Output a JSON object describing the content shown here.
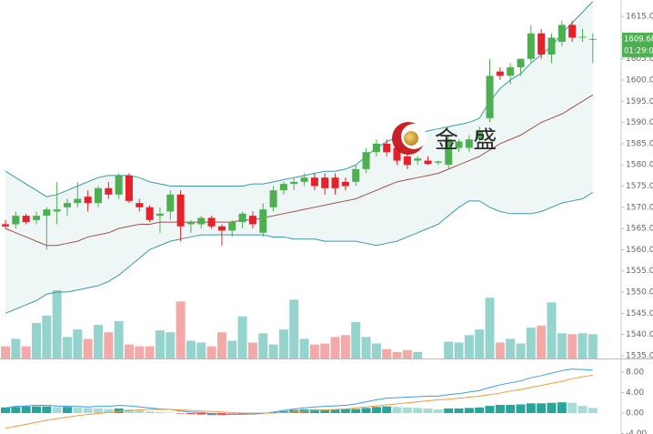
{
  "chart_data": [
    {
      "type": "candlestick",
      "ylim": [
        1534.35,
        1618.87
      ],
      "yticks": [
        {
          "value": 1535,
          "label": "1535.00"
        },
        {
          "value": 1540,
          "label": "1540.00"
        },
        {
          "value": 1545,
          "label": "1545.00"
        },
        {
          "value": 1550,
          "label": "1550.00"
        },
        {
          "value": 1555,
          "label": "1555.00"
        },
        {
          "value": 1560,
          "label": "1560.00"
        },
        {
          "value": 1565,
          "label": "1565.00"
        },
        {
          "value": 1570,
          "label": "1570.00"
        },
        {
          "value": 1575,
          "label": "1575.00"
        },
        {
          "value": 1580,
          "label": "1580.00"
        },
        {
          "value": 1585,
          "label": "1585.00"
        },
        {
          "value": 1590,
          "label": "1590.00"
        },
        {
          "value": 1595,
          "label": "1595.00"
        },
        {
          "value": 1600,
          "label": "1600.00"
        },
        {
          "value": 1605,
          "label": "1605.00"
        },
        {
          "value": 1610,
          "label": "1610.00"
        },
        {
          "value": 1615,
          "label": "1615.00"
        }
      ],
      "open": [
        1566,
        1566,
        1568,
        1567,
        1568,
        1569,
        1570,
        1571,
        1572.5,
        1571,
        1574.5,
        1573,
        1577.5,
        1571,
        1570,
        1568,
        1569,
        1573,
        1566,
        1566,
        1567.5,
        1565.5,
        1564.5,
        1566.5,
        1568,
        1564,
        1570,
        1574,
        1575.5,
        1576,
        1577,
        1577,
        1577,
        1576,
        1576,
        1579,
        1583,
        1585,
        1584,
        1582,
        1581,
        1581,
        1580.5,
        1580,
        1584,
        1584,
        1586,
        1591,
        1602,
        1601,
        1603,
        1605,
        1611,
        1606,
        1609,
        1613,
        1610,
        1609.5
      ],
      "high": [
        1567,
        1569,
        1568.5,
        1569,
        1570,
        1576,
        1572,
        1576,
        1574,
        1575,
        1576,
        1578,
        1578,
        1572,
        1570.5,
        1570,
        1574,
        1574,
        1567,
        1568,
        1568,
        1566,
        1567,
        1569,
        1569,
        1571,
        1575,
        1576,
        1577,
        1578,
        1578,
        1578,
        1578,
        1577,
        1580,
        1584,
        1586,
        1586,
        1585,
        1583,
        1582,
        1582,
        1581,
        1587,
        1586,
        1587,
        1589,
        1605,
        1603,
        1604,
        1605,
        1613,
        1612,
        1611,
        1614,
        1614,
        1612,
        1611
      ],
      "low": [
        1565,
        1565,
        1566,
        1566,
        1560,
        1566,
        1568,
        1570,
        1569,
        1570,
        1572,
        1572,
        1571,
        1569,
        1566.5,
        1564,
        1567,
        1562,
        1564,
        1565,
        1565,
        1561,
        1563,
        1565,
        1565,
        1563,
        1569,
        1573,
        1574,
        1575,
        1574,
        1573,
        1573,
        1574,
        1575,
        1578,
        1582,
        1582,
        1580,
        1579,
        1580,
        1580,
        1580,
        1579,
        1583,
        1583,
        1585,
        1590,
        1600,
        1599,
        1601,
        1604,
        1605,
        1604,
        1608,
        1609,
        1609,
        1604
      ],
      "close": [
        1565.5,
        1568,
        1566.5,
        1568,
        1569.5,
        1569.5,
        1571,
        1572,
        1571,
        1574.5,
        1573,
        1577.5,
        1571.5,
        1570,
        1567,
        1568.5,
        1573,
        1565.5,
        1566.5,
        1567.5,
        1565.5,
        1564.5,
        1566.5,
        1568.5,
        1566,
        1569.5,
        1574,
        1575.5,
        1576,
        1577,
        1575,
        1574.5,
        1574.5,
        1575,
        1579,
        1583,
        1585,
        1583,
        1581,
        1580,
        1581.5,
        1580.2,
        1580.8,
        1586,
        1585.5,
        1586,
        1588,
        1601,
        1601,
        1603,
        1605,
        1611,
        1606,
        1610,
        1613,
        1610,
        1610.2,
        1609.68
      ],
      "up_color": "#4caf50",
      "down_color": "#e8202a",
      "upper": [
        1578.5,
        1577,
        1575.5,
        1574,
        1572.5,
        1573,
        1574,
        1575,
        1576,
        1577,
        1577.5,
        1577.5,
        1577.5,
        1577,
        1576,
        1575.5,
        1575,
        1575,
        1575,
        1575,
        1575,
        1575,
        1575,
        1575,
        1575.5,
        1575.5,
        1576,
        1576.5,
        1577,
        1577.5,
        1578,
        1578.5,
        1578.5,
        1579,
        1580,
        1582,
        1584,
        1585.5,
        1586.5,
        1587,
        1587.5,
        1588,
        1588.5,
        1589,
        1589.5,
        1590,
        1591,
        1595,
        1598,
        1600,
        1601.5,
        1604,
        1606,
        1608,
        1611,
        1613.5,
        1616,
        1618.5
      ],
      "middle": [
        1565,
        1564,
        1563,
        1562,
        1561,
        1561,
        1561.5,
        1562,
        1563,
        1563.5,
        1564,
        1565,
        1565.5,
        1566,
        1566,
        1566.5,
        1566.5,
        1566.5,
        1566.5,
        1566.5,
        1566.5,
        1566.5,
        1566.5,
        1567,
        1567,
        1567.5,
        1568,
        1568.5,
        1569,
        1569.5,
        1570,
        1570.5,
        1571,
        1571.5,
        1572,
        1573,
        1574,
        1575,
        1576,
        1576.5,
        1577,
        1577.5,
        1578,
        1579,
        1580,
        1581,
        1582,
        1583.5,
        1585,
        1586,
        1587,
        1588.5,
        1590,
        1591,
        1592,
        1593.5,
        1595,
        1596.5
      ],
      "lower": [
        1545,
        1546,
        1547,
        1548,
        1549.5,
        1550,
        1550,
        1550.5,
        1551,
        1551.5,
        1552.5,
        1554,
        1556,
        1558,
        1560,
        1561,
        1562,
        1562.5,
        1563,
        1563.5,
        1563.5,
        1563.5,
        1563.5,
        1563.5,
        1563.5,
        1563.5,
        1563,
        1563,
        1562.5,
        1562.5,
        1562.5,
        1562,
        1562,
        1562,
        1562,
        1561.5,
        1561,
        1561.5,
        1562,
        1563,
        1564,
        1565,
        1566,
        1568,
        1570,
        1571.5,
        1571.5,
        1570,
        1569,
        1568.5,
        1568.5,
        1568.5,
        1569,
        1570,
        1571,
        1571.5,
        1572,
        1573.5
      ],
      "band_color": "#3a9aa8",
      "middle_color": "#a0524a",
      "band_fill": "#eef6f6",
      "volume": [
        13,
        21,
        13,
        38,
        46,
        73,
        23,
        31,
        21,
        36,
        28,
        40,
        15,
        13,
        13,
        30,
        28,
        61,
        19,
        17,
        13,
        28,
        19,
        45,
        17,
        27,
        15,
        31,
        63,
        21,
        15,
        16,
        23,
        25,
        39,
        23,
        16,
        10,
        7,
        9,
        7,
        null,
        null,
        18,
        17,
        25,
        31,
        65,
        17,
        21,
        16,
        33,
        35,
        60,
        27,
        26,
        27,
        26
      ],
      "volume_up_color": "#95d3cd",
      "volume_down_color": "#f4a9a9",
      "time_tag": "01:29:00",
      "watermark": "金 盛"
    },
    {
      "type": "macd",
      "ylim": [
        -4.09,
        10.31
      ],
      "yticks": [
        {
          "value": -4,
          "label": "-4.00"
        },
        {
          "value": 0,
          "label": "0.00"
        },
        {
          "value": 4,
          "label": "4.00"
        },
        {
          "value": 8,
          "label": "8.00"
        }
      ],
      "dif": [
        1.0,
        1.3,
        1.4,
        1.5,
        1.5,
        1.4,
        1.3,
        1.3,
        1.2,
        1.3,
        1.3,
        1.5,
        1.4,
        1.2,
        1.0,
        0.8,
        0.7,
        0.4,
        0.2,
        0.1,
        -0.1,
        -0.3,
        -0.3,
        -0.2,
        -0.2,
        -0.1,
        0.2,
        0.5,
        0.8,
        1.0,
        1.2,
        1.3,
        1.4,
        1.5,
        1.8,
        2.2,
        2.6,
        2.9,
        3.0,
        3.1,
        3.2,
        3.3,
        3.3,
        3.6,
        3.8,
        4.1,
        4.4,
        5.0,
        5.5,
        5.9,
        6.3,
        6.9,
        7.3,
        7.8,
        8.3,
        8.6,
        8.5,
        8.4
      ],
      "dea": [
        -3.0,
        -2.6,
        -2.2,
        -1.8,
        -1.4,
        -1.1,
        -0.8,
        -0.5,
        -0.3,
        -0.1,
        0.1,
        0.3,
        0.5,
        0.6,
        0.7,
        0.7,
        0.7,
        0.6,
        0.5,
        0.4,
        0.3,
        0.2,
        0.1,
        0.0,
        0.0,
        0.0,
        0.0,
        0.1,
        0.2,
        0.3,
        0.5,
        0.6,
        0.7,
        0.8,
        1.0,
        1.2,
        1.4,
        1.6,
        1.8,
        2.0,
        2.2,
        2.4,
        2.6,
        2.7,
        2.9,
        3.1,
        3.3,
        3.6,
        3.9,
        4.3,
        4.6,
        5.0,
        5.4,
        5.8,
        6.2,
        6.7,
        7.1,
        7.4
      ],
      "hist": [
        1.1,
        1.2,
        1.3,
        1.3,
        1.3,
        1.2,
        1.2,
        1.1,
        1.0,
        0.9,
        0.8,
        0.9,
        0.7,
        0.5,
        0.3,
        0.2,
        0.1,
        -0.1,
        -0.2,
        -0.3,
        -0.4,
        -0.4,
        -0.3,
        -0.3,
        -0.2,
        -0.1,
        0.2,
        0.4,
        0.6,
        0.7,
        0.7,
        0.7,
        0.7,
        0.8,
        0.8,
        1.0,
        1.2,
        1.3,
        1.2,
        1.1,
        1.0,
        0.9,
        0.7,
        0.9,
        0.9,
        1.0,
        1.1,
        1.4,
        1.6,
        1.6,
        1.7,
        1.9,
        1.9,
        2.0,
        2.1,
        2.0,
        1.4,
        1.0
      ],
      "dif_color": "#3d9be9",
      "dea_color": "#f39a3c",
      "hist_colors": [
        "#26a69a",
        "#a6dcd6",
        "#ef5350",
        "#f5a5a5"
      ]
    }
  ]
}
